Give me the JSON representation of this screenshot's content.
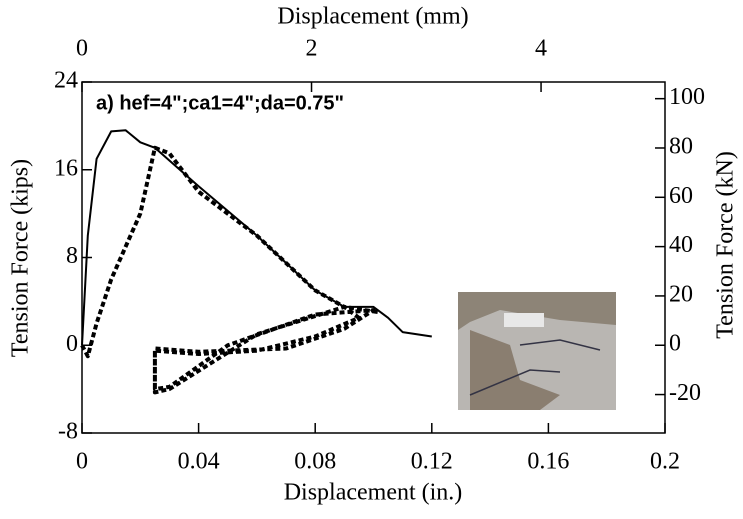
{
  "chart_data": {
    "type": "line",
    "xlabel": "Displacement (in.)",
    "x2label": "Displacement (mm)",
    "ylabel": "Tension Force (kips)",
    "y2label": "Tension Force (kN)",
    "annotation": "a) hef=4\";ca1=4\";da=0.75\"",
    "xlim": [
      0,
      0.2
    ],
    "xticks": [
      0,
      0.04,
      0.08,
      0.12,
      0.16,
      0.2
    ],
    "x2lim": [
      0,
      5.08
    ],
    "x2ticks": [
      0,
      2,
      4
    ],
    "ylim": [
      -8,
      24
    ],
    "yticks": [
      -8,
      0,
      8,
      16,
      24
    ],
    "y2lim": [
      -35.59,
      106.76
    ],
    "y2ticks": [
      -20,
      0,
      20,
      40,
      60,
      80,
      100
    ],
    "series": [
      {
        "style": "solid",
        "color": "#000000",
        "x": [
          0,
          0.002,
          0.005,
          0.01,
          0.015,
          0.02,
          0.025,
          0.04,
          0.06,
          0.07,
          0.08,
          0.09,
          0.1,
          0.105,
          0.11,
          0.12
        ],
        "values": [
          0,
          10,
          17,
          19.5,
          19.6,
          18.5,
          18,
          14.5,
          10,
          7.5,
          5,
          3.5,
          3.5,
          2.5,
          1.2,
          0.8
        ]
      },
      {
        "style": "dashed",
        "color": "#000000",
        "x": [
          0,
          0.002,
          0.005,
          0.01,
          0.015,
          0.02,
          0.025,
          0.03,
          0.04,
          0.06,
          0.08,
          0.09,
          0.095,
          0.08,
          0.06,
          0.04,
          0.025,
          0.025,
          0.03,
          0.05,
          0.08,
          0.1,
          0.09,
          0.07,
          0.04,
          0.025,
          0.025,
          0.03,
          0.06,
          0.09,
          0.102
        ],
        "values": [
          0,
          -1,
          2,
          6,
          9,
          12,
          18,
          17.5,
          14,
          10,
          5,
          3.5,
          2.5,
          0.8,
          -0.5,
          -0.8,
          -0.5,
          -4,
          -3.8,
          0,
          2.8,
          3.2,
          1.5,
          -0.3,
          -0.6,
          -0.3,
          -4.3,
          -4,
          1,
          3.5,
          3
        ]
      }
    ]
  }
}
